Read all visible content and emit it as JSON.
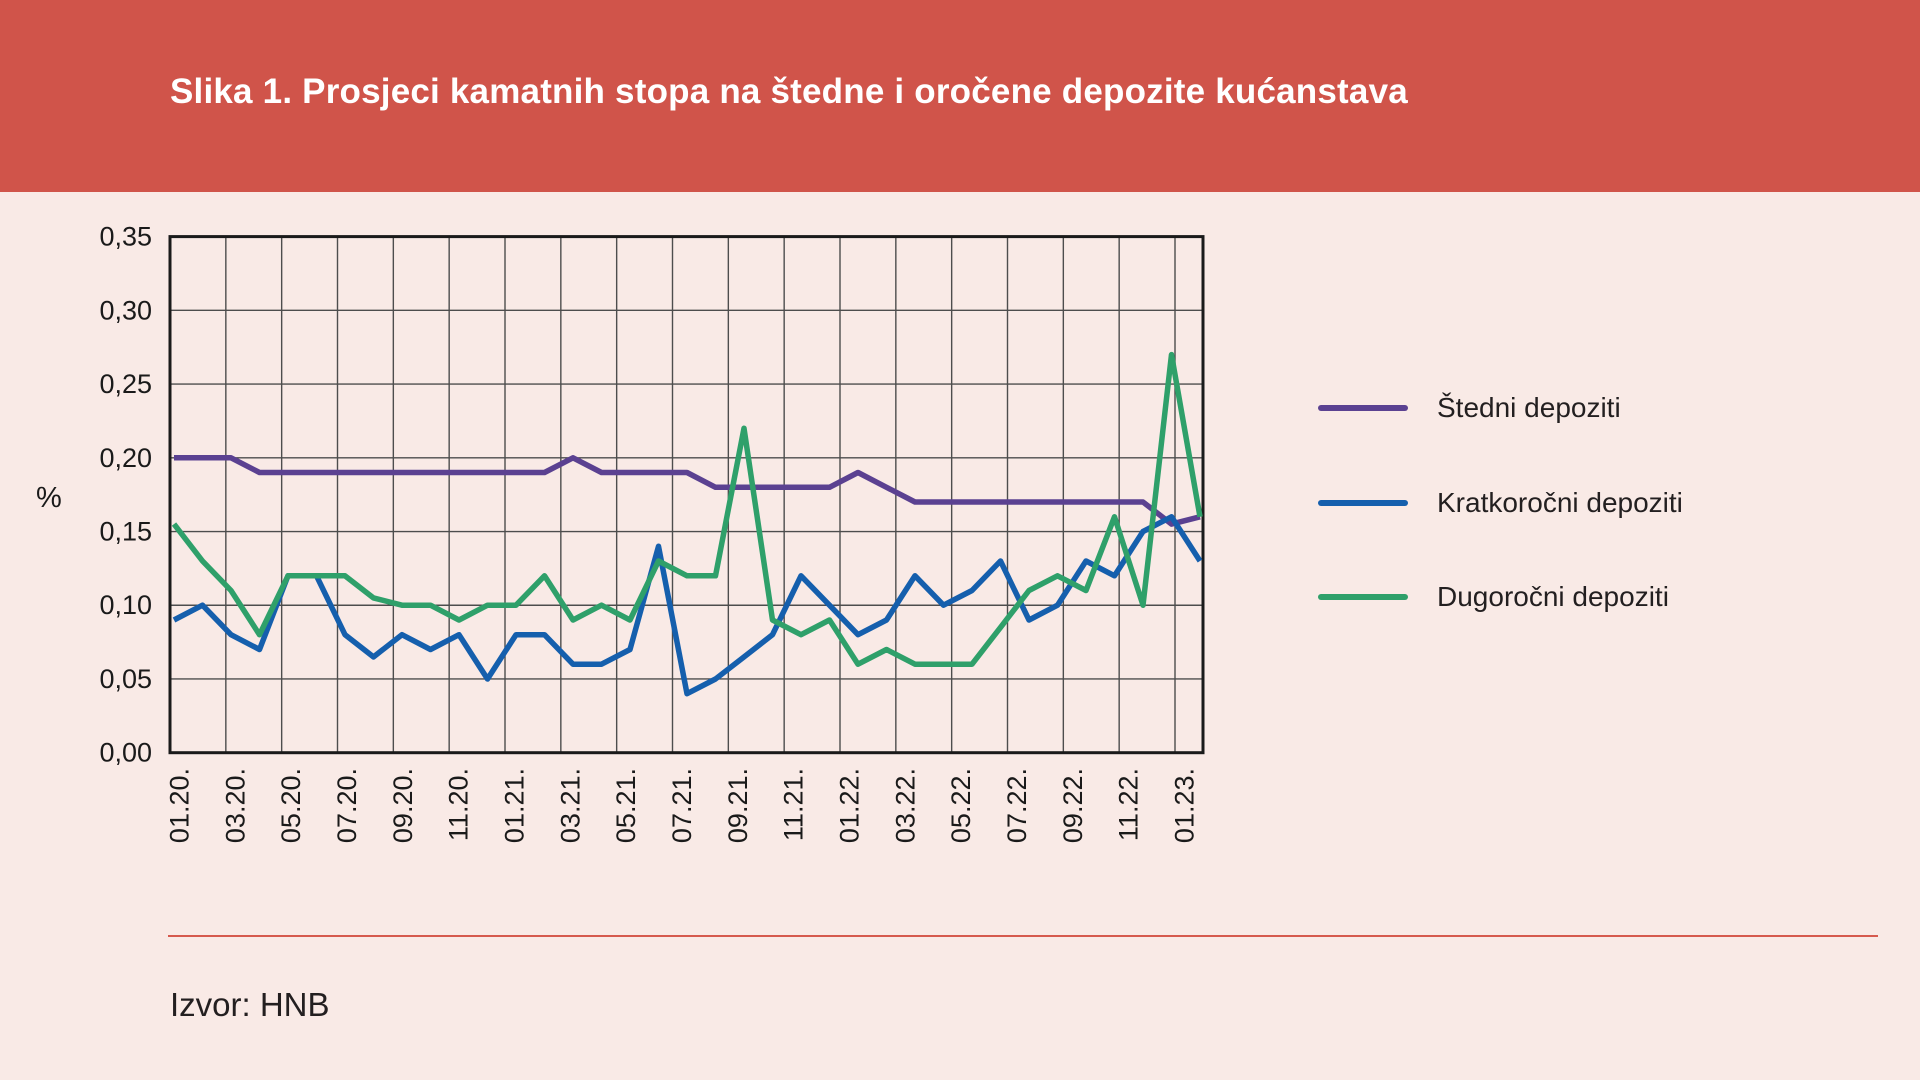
{
  "header": {
    "title": "Slika 1. Prosjeci kamatnih stopa na štedne i oročene depozite kućanstava"
  },
  "footer": {
    "source": "Izvor: HNB"
  },
  "colors": {
    "banner": "#d0544a",
    "background": "#f9eae6",
    "grid": "#4d4d4d",
    "frame": "#1a1a1a",
    "axis_text": "#1a1a1a",
    "footer_rule": "#d65a4e"
  },
  "chart_data": {
    "type": "line",
    "title": "",
    "xlabel": "",
    "ylabel": "%",
    "ylim": [
      0,
      0.35
    ],
    "ytick_step": 0.05,
    "ytick_labels": [
      "0,00",
      "0,05",
      "0,10",
      "0,15",
      "0,20",
      "0,25",
      "0,30",
      "0,35"
    ],
    "x_tick_labels": [
      "01.20.",
      "03.20.",
      "05.20.",
      "07.20.",
      "09.20.",
      "11.20.",
      "01.21.",
      "03.21.",
      "05.21.",
      "07.21.",
      "09.21.",
      "11.21.",
      "01.22.",
      "03.22.",
      "05.22.",
      "07.22.",
      "09.22.",
      "11.22.",
      "01.23."
    ],
    "months_per_tick": 2,
    "grid": true,
    "legend_position": "right",
    "series": [
      {
        "name": "Štedni depoziti",
        "color": "#5b4191",
        "values": [
          0.2,
          0.2,
          0.2,
          0.19,
          0.19,
          0.19,
          0.19,
          0.19,
          0.19,
          0.19,
          0.19,
          0.19,
          0.19,
          0.19,
          0.2,
          0.19,
          0.19,
          0.19,
          0.19,
          0.18,
          0.18,
          0.18,
          0.18,
          0.18,
          0.19,
          0.18,
          0.17,
          0.17,
          0.17,
          0.17,
          0.17,
          0.17,
          0.17,
          0.17,
          0.17,
          0.155,
          0.16
        ]
      },
      {
        "name": "Kratkoročni depoziti",
        "color": "#155fad",
        "values": [
          0.09,
          0.1,
          0.08,
          0.07,
          0.12,
          0.12,
          0.08,
          0.065,
          0.08,
          0.07,
          0.08,
          0.05,
          0.08,
          0.08,
          0.06,
          0.06,
          0.07,
          0.14,
          0.04,
          0.05,
          0.065,
          0.08,
          0.12,
          0.1,
          0.08,
          0.09,
          0.12,
          0.1,
          0.11,
          0.13,
          0.09,
          0.1,
          0.13,
          0.12,
          0.15,
          0.16,
          0.13
        ]
      },
      {
        "name": "Dugoročni depoziti",
        "color": "#2fa06a",
        "values": [
          0.155,
          0.13,
          0.11,
          0.08,
          0.12,
          0.12,
          0.12,
          0.105,
          0.1,
          0.1,
          0.09,
          0.1,
          0.1,
          0.12,
          0.09,
          0.1,
          0.09,
          0.13,
          0.12,
          0.12,
          0.22,
          0.09,
          0.08,
          0.09,
          0.06,
          0.07,
          0.06,
          0.06,
          0.06,
          0.085,
          0.11,
          0.12,
          0.11,
          0.16,
          0.1,
          0.27,
          0.16
        ]
      }
    ]
  }
}
